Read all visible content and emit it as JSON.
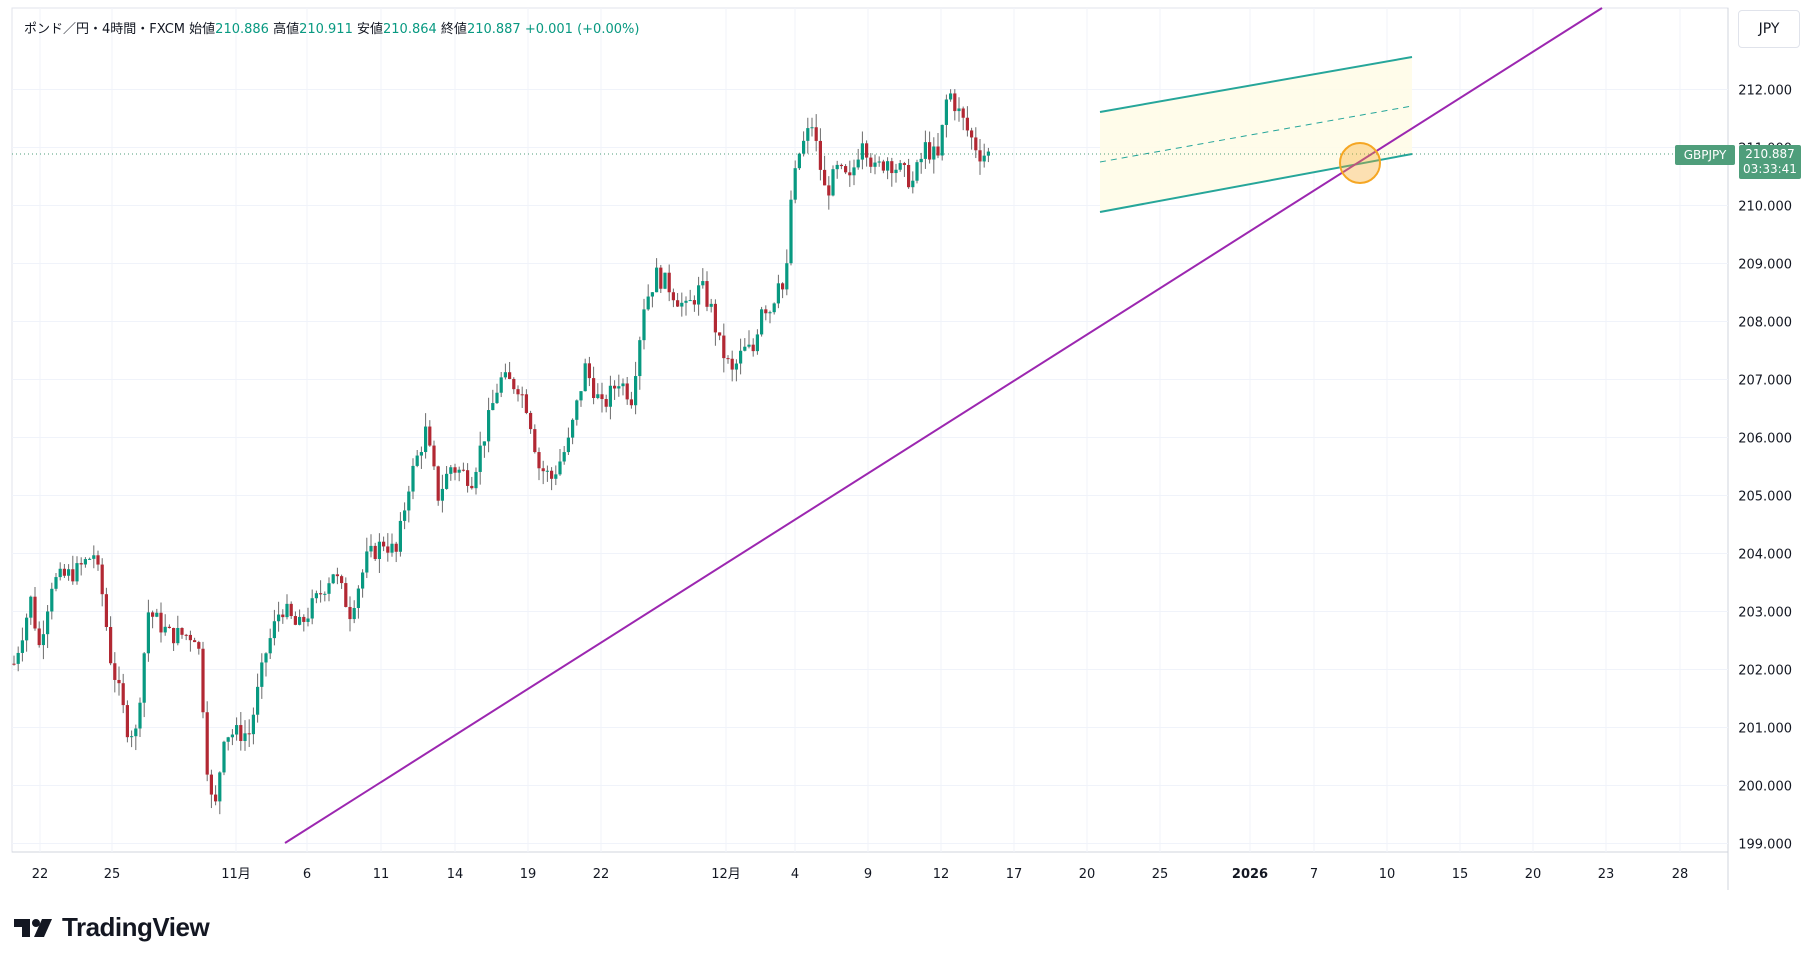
{
  "header": {
    "symbol": "ポンド／円・4時間・FXCM",
    "open_label": "始値",
    "open": "210.886",
    "high_label": "高値",
    "high": "210.911",
    "low_label": "安値",
    "low": "210.864",
    "close_label": "終値",
    "close": "210.887",
    "change": "+0.001 (+0.00%)"
  },
  "currency": "JPY",
  "last_price": {
    "symbol": "GBPJPY",
    "price": "210.887",
    "countdown": "03:33:41"
  },
  "logo": {
    "text": "TradingView"
  },
  "colors": {
    "up": "#089981",
    "down": "#b22833",
    "trend": "#9c27b0",
    "channel": "#26a69a",
    "highlight": "#f5a623"
  },
  "chart_data": {
    "type": "candlestick",
    "ylim": [
      199.0,
      212.0
    ],
    "yticks": [
      "199.000",
      "200.000",
      "201.000",
      "202.000",
      "203.000",
      "204.000",
      "205.000",
      "206.000",
      "207.000",
      "208.000",
      "209.000",
      "210.000",
      "211.000",
      "212.000"
    ],
    "xticks": [
      "22",
      "25",
      "11月",
      "6",
      "11",
      "14",
      "19",
      "22",
      "12月",
      "4",
      "9",
      "12",
      "17",
      "20",
      "25",
      "2026",
      "7",
      "10",
      "15",
      "20",
      "23",
      "28"
    ],
    "price_path": [
      [
        0,
        202.1
      ],
      [
        20,
        203.2
      ],
      [
        30,
        202.4
      ],
      [
        45,
        203.5
      ],
      [
        75,
        203.7
      ],
      [
        95,
        204.0
      ],
      [
        105,
        203.3
      ],
      [
        115,
        202.2
      ],
      [
        135,
        201.0
      ],
      [
        145,
        200.9
      ],
      [
        160,
        203.0
      ],
      [
        185,
        202.6
      ],
      [
        215,
        202.6
      ],
      [
        222,
        202.2
      ],
      [
        228,
        200.6
      ],
      [
        238,
        199.4
      ],
      [
        250,
        200.9
      ],
      [
        280,
        200.9
      ],
      [
        300,
        202.3
      ],
      [
        318,
        203.1
      ],
      [
        338,
        202.7
      ],
      [
        360,
        203.2
      ],
      [
        380,
        203.7
      ],
      [
        400,
        203.0
      ],
      [
        420,
        203.9
      ],
      [
        440,
        204.2
      ],
      [
        455,
        204.0
      ],
      [
        470,
        205.2
      ],
      [
        490,
        206.1
      ],
      [
        505,
        205.0
      ],
      [
        520,
        205.5
      ],
      [
        545,
        205.3
      ],
      [
        565,
        206.3
      ],
      [
        578,
        207.0
      ],
      [
        600,
        206.9
      ],
      [
        612,
        206.5
      ],
      [
        625,
        205.5
      ],
      [
        640,
        205.3
      ],
      [
        660,
        205.9
      ],
      [
        680,
        207.2
      ],
      [
        700,
        206.5
      ],
      [
        720,
        207.0
      ],
      [
        735,
        206.7
      ],
      [
        750,
        208.3
      ],
      [
        765,
        208.8
      ],
      [
        780,
        208.6
      ],
      [
        800,
        208.2
      ],
      [
        818,
        208.6
      ],
      [
        830,
        208.2
      ],
      [
        840,
        207.6
      ],
      [
        855,
        207.1
      ],
      [
        868,
        207.5
      ],
      [
        880,
        207.5
      ],
      [
        890,
        208.3
      ],
      [
        902,
        208.2
      ],
      [
        910,
        208.8
      ],
      [
        918,
        208.4
      ],
      [
        925,
        210.1
      ],
      [
        935,
        210.9
      ],
      [
        950,
        211.4
      ],
      [
        958,
        210.8
      ],
      [
        966,
        210.2
      ],
      [
        980,
        210.6
      ],
      [
        995,
        210.4
      ],
      [
        1010,
        211.2
      ],
      [
        1025,
        210.6
      ],
      [
        1040,
        210.8
      ],
      [
        1055,
        210.6
      ],
      [
        1070,
        210.4
      ],
      [
        1085,
        211.0
      ],
      [
        1100,
        210.8
      ],
      [
        1112,
        212.0
      ],
      [
        1125,
        211.6
      ],
      [
        1138,
        211.2
      ],
      [
        1150,
        210.9
      ],
      [
        1160,
        210.887
      ]
    ]
  }
}
